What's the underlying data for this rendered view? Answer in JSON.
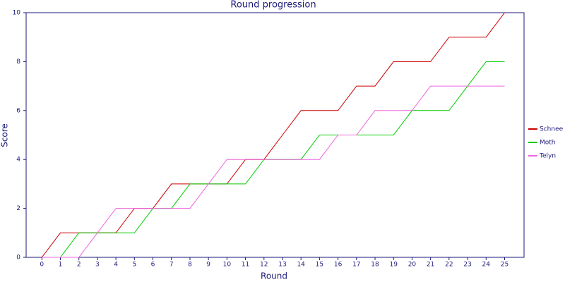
{
  "chart_data": {
    "type": "line",
    "title": "Round progression",
    "x_label": "Round",
    "y_label": "Score",
    "x": [
      0,
      1,
      2,
      3,
      4,
      5,
      6,
      7,
      8,
      9,
      10,
      11,
      12,
      13,
      14,
      15,
      16,
      17,
      18,
      19,
      20,
      21,
      22,
      23,
      24,
      25
    ],
    "series": [
      {
        "name": "Schnee",
        "color": "#cc0000",
        "values": [
          0,
          1,
          1,
          1,
          1,
          2,
          2,
          3,
          3,
          3,
          3,
          4,
          4,
          5,
          6,
          6,
          6,
          7,
          7,
          8,
          8,
          8,
          9,
          9,
          9,
          10
        ]
      },
      {
        "name": "Moth",
        "color": "#00cc00",
        "values": [
          0,
          0,
          1,
          1,
          1,
          1,
          2,
          2,
          3,
          3,
          3,
          3,
          4,
          4,
          4,
          5,
          5,
          5,
          5,
          5,
          6,
          6,
          6,
          7,
          8,
          8
        ]
      },
      {
        "name": "Telyn",
        "color": "#ee66dd",
        "values": [
          0,
          0,
          0,
          1,
          2,
          2,
          2,
          2,
          2,
          3,
          4,
          4,
          4,
          4,
          4,
          4,
          5,
          5,
          6,
          6,
          6,
          7,
          7,
          7,
          7,
          7
        ]
      }
    ],
    "xlim": [
      -0.85,
      26.05
    ],
    "ylim": [
      0,
      10
    ],
    "xticks": [
      0,
      1,
      2,
      3,
      4,
      5,
      6,
      7,
      8,
      9,
      10,
      11,
      12,
      13,
      14,
      15,
      16,
      17,
      18,
      19,
      20,
      21,
      22,
      23,
      24,
      25
    ],
    "yticks": [
      0,
      2,
      4,
      6,
      8,
      10
    ],
    "legend": "right"
  }
}
